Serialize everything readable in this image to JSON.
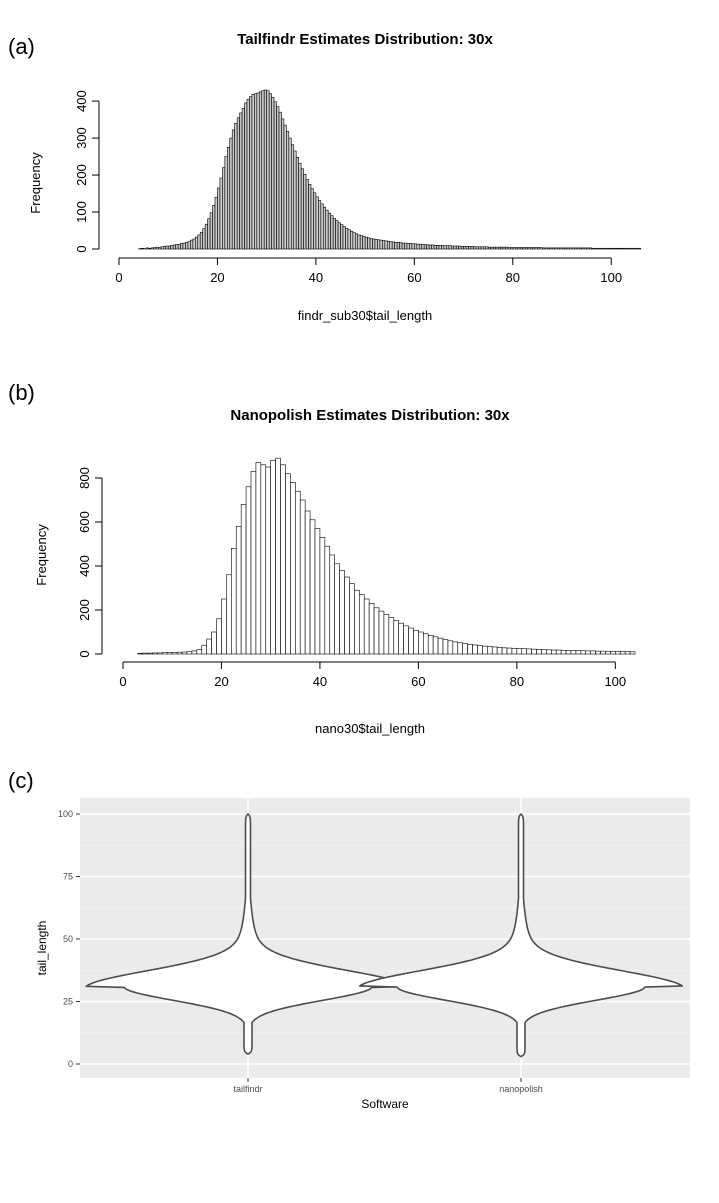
{
  "panels": {
    "a": "(a)",
    "b": "(b)",
    "c": "(c)"
  },
  "chart_data": [
    {
      "type": "bar",
      "title": "Tailfindr Estimates Distribution: 30x",
      "xlabel": "findr_sub30$tail_length",
      "ylabel": "Frequency",
      "xlim": [
        0,
        103
      ],
      "ylim": [
        0,
        430
      ],
      "xticks": [
        0,
        20,
        40,
        60,
        80,
        100
      ],
      "yticks": [
        0,
        100,
        200,
        300,
        400
      ],
      "bin_width": 0.5,
      "bin_start": 4,
      "values": [
        1,
        2,
        1,
        3,
        2,
        3,
        4,
        5,
        4,
        6,
        7,
        8,
        8,
        10,
        11,
        12,
        13,
        15,
        16,
        18,
        20,
        24,
        27,
        32,
        38,
        45,
        55,
        67,
        82,
        98,
        118,
        140,
        165,
        192,
        220,
        250,
        275,
        300,
        322,
        340,
        355,
        368,
        380,
        395,
        405,
        412,
        418,
        420,
        422,
        425,
        428,
        430,
        428,
        420,
        410,
        398,
        385,
        370,
        352,
        335,
        318,
        300,
        282,
        265,
        248,
        232,
        217,
        202,
        188,
        175,
        163,
        152,
        141,
        131,
        122,
        113,
        105,
        97,
        90,
        83,
        77,
        71,
        66,
        61,
        56,
        52,
        48,
        44,
        41,
        38,
        36,
        34,
        32,
        30,
        28,
        27,
        26,
        25,
        24,
        23,
        22,
        21,
        20,
        19,
        18,
        18,
        17,
        16,
        16,
        15,
        15,
        14,
        14,
        13,
        13,
        12,
        12,
        11,
        11,
        11,
        10,
        10,
        10,
        9,
        9,
        9,
        9,
        8,
        8,
        8,
        8,
        7,
        7,
        7,
        7,
        7,
        6,
        6,
        6,
        6,
        6,
        6,
        5,
        5,
        5,
        5,
        5,
        5,
        5,
        5,
        4,
        4,
        4,
        4,
        4,
        4,
        4,
        4,
        4,
        4,
        4,
        4,
        4,
        4,
        3,
        3,
        3,
        3,
        3,
        3,
        3,
        3,
        3,
        3,
        3,
        3,
        3,
        3,
        3,
        3,
        3,
        3,
        3,
        3,
        2,
        2,
        2,
        2,
        2,
        2,
        2,
        2,
        2,
        2,
        2,
        2,
        2,
        2,
        2,
        2,
        2,
        2,
        2,
        2
      ]
    },
    {
      "type": "bar",
      "title": "Nanopolish Estimates Distribution: 30x",
      "xlabel": "nano30$tail_length",
      "ylabel": "Frequency",
      "xlim": [
        0,
        104
      ],
      "ylim": [
        0,
        900
      ],
      "xticks": [
        0,
        20,
        40,
        60,
        80,
        100
      ],
      "yticks": [
        0,
        200,
        400,
        600,
        800
      ],
      "bin_width": 1,
      "bin_start": 3,
      "values": [
        3,
        4,
        4,
        5,
        5,
        6,
        7,
        7,
        8,
        9,
        11,
        14,
        20,
        40,
        68,
        100,
        160,
        250,
        360,
        480,
        580,
        680,
        760,
        830,
        870,
        860,
        850,
        880,
        890,
        860,
        820,
        780,
        740,
        700,
        650,
        610,
        570,
        530,
        490,
        450,
        410,
        380,
        350,
        320,
        290,
        270,
        250,
        230,
        210,
        195,
        180,
        165,
        152,
        140,
        128,
        118,
        108,
        100,
        92,
        85,
        78,
        72,
        66,
        60,
        55,
        51,
        47,
        44,
        41,
        38,
        36,
        34,
        32,
        30,
        28,
        27,
        26,
        25,
        24,
        23,
        22,
        21,
        20,
        19,
        18,
        18,
        17,
        16,
        16,
        15,
        15,
        14,
        14,
        13,
        13,
        12,
        12,
        11,
        11,
        11,
        10
      ]
    },
    {
      "type": "violin",
      "categories": [
        "tailfindr",
        "nanopolish"
      ],
      "xlabel": "Software",
      "ylabel": "tail_length",
      "ylim": [
        0,
        100
      ],
      "yticks": [
        0,
        25,
        50,
        75,
        100
      ],
      "series": [
        {
          "y_range": [
            4,
            100
          ],
          "mode": 31
        },
        {
          "y_range": [
            3,
            100
          ],
          "mode": 31
        }
      ]
    }
  ]
}
